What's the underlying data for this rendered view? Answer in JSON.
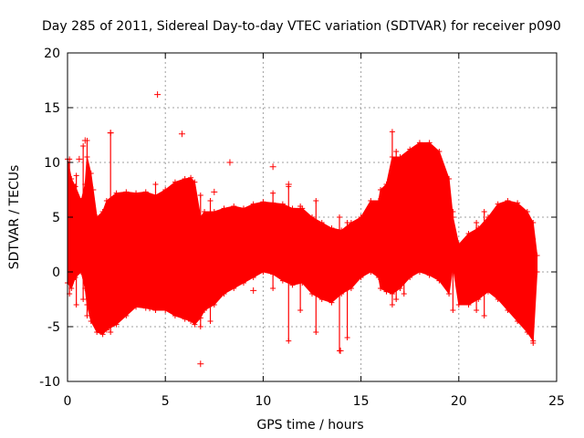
{
  "chart_data": {
    "type": "scatter",
    "title": "Day 285 of 2011, Sidereal Day-to-day VTEC variation (SDTVAR) for receiver p090",
    "xlabel": "GPS time / hours",
    "ylabel": "SDTVAR / TECUs",
    "xlim": [
      0,
      25
    ],
    "ylim": [
      -10,
      20
    ],
    "xticks": [
      0,
      5,
      10,
      15,
      20,
      25
    ],
    "yticks": [
      -10,
      -5,
      0,
      5,
      10,
      15,
      20
    ],
    "grid": true,
    "marker": "+",
    "color": "#ff0000",
    "envelope": {
      "x": [
        0.0,
        0.2,
        0.4,
        0.7,
        0.9,
        1.0,
        1.2,
        1.5,
        1.8,
        2.0,
        2.5,
        3.0,
        3.5,
        4.0,
        4.5,
        5.0,
        5.5,
        6.0,
        6.3,
        6.5,
        6.8,
        7.0,
        7.5,
        8.0,
        8.5,
        9.0,
        9.5,
        10.0,
        10.5,
        11.0,
        11.5,
        12.0,
        12.5,
        13.0,
        13.5,
        14.0,
        14.5,
        15.0,
        15.5,
        15.9,
        16.0,
        16.3,
        16.6,
        17.0,
        17.5,
        18.0,
        18.5,
        19.0,
        19.5,
        19.7,
        20.0,
        20.5,
        21.0,
        21.5,
        22.0,
        22.5,
        23.0,
        23.5,
        23.8,
        24.0
      ],
      "upper": [
        10.3,
        8.5,
        7.8,
        6.5,
        8.0,
        10.5,
        9.0,
        5.0,
        5.5,
        6.5,
        7.2,
        7.3,
        7.2,
        7.3,
        7.0,
        7.5,
        8.2,
        8.5,
        8.6,
        8.2,
        5.0,
        5.5,
        5.5,
        5.8,
        6.0,
        5.8,
        6.2,
        6.4,
        6.3,
        6.2,
        5.8,
        5.8,
        5.0,
        4.5,
        4.0,
        3.8,
        4.5,
        5.0,
        6.5,
        6.5,
        7.5,
        8.0,
        10.5,
        10.5,
        11.2,
        11.8,
        11.8,
        11.0,
        8.5,
        5.0,
        2.5,
        3.5,
        4.0,
        5.0,
        6.2,
        6.5,
        6.3,
        5.5,
        4.5,
        1.5
      ],
      "lower": [
        -1.0,
        -1.5,
        -0.5,
        0.0,
        -1.5,
        -3.0,
        -4.5,
        -5.5,
        -5.7,
        -5.3,
        -4.8,
        -4.0,
        -3.2,
        -3.3,
        -3.5,
        -3.5,
        -4.0,
        -4.3,
        -4.5,
        -4.8,
        -4.2,
        -3.5,
        -3.0,
        -2.0,
        -1.5,
        -1.0,
        -0.5,
        0.0,
        -0.2,
        -0.8,
        -1.2,
        -1.0,
        -2.0,
        -2.5,
        -2.8,
        -2.0,
        -1.5,
        -0.5,
        0.0,
        -0.5,
        -1.5,
        -1.8,
        -2.0,
        -1.5,
        -0.5,
        0.0,
        -0.3,
        -0.8,
        -2.0,
        0.5,
        -3.0,
        -3.0,
        -2.5,
        -1.8,
        -2.5,
        -3.5,
        -4.5,
        -5.5,
        -6.3,
        0.0
      ]
    },
    "outliers": {
      "x": [
        4.6,
        5.85,
        2.2,
        0.9,
        10.5,
        11.3,
        8.3,
        6.8,
        4.2,
        13.95,
        9.5,
        0.6,
        1.3,
        7.5
      ],
      "y": [
        16.2,
        12.6,
        12.7,
        12.0,
        9.6,
        8.0,
        10.0,
        -8.4,
        -3.3,
        -7.2,
        -1.7,
        10.3,
        7.5,
        7.3
      ]
    },
    "spikes": {
      "x": [
        0.1,
        0.45,
        0.8,
        1.0,
        2.2,
        4.5,
        6.8,
        7.3,
        10.5,
        11.3,
        11.9,
        12.7,
        13.9,
        14.3,
        16.6,
        16.8,
        17.2,
        19.7,
        20.9,
        21.3,
        23.8
      ],
      "top": [
        10.3,
        8.8,
        11.5,
        12.0,
        12.7,
        8.0,
        7.0,
        6.5,
        7.2,
        7.8,
        6.0,
        6.5,
        5.0,
        4.5,
        12.8,
        11.0,
        9.0,
        5.5,
        4.5,
        5.5,
        3.0
      ],
      "bottom": [
        -2.0,
        -3.0,
        -2.5,
        -4.0,
        -5.5,
        -3.5,
        -5.0,
        -4.5,
        -1.5,
        -6.3,
        -3.5,
        -5.5,
        -7.2,
        -6.0,
        -3.0,
        -2.5,
        -2.0,
        -3.5,
        -3.5,
        -4.0,
        -6.5
      ]
    }
  }
}
